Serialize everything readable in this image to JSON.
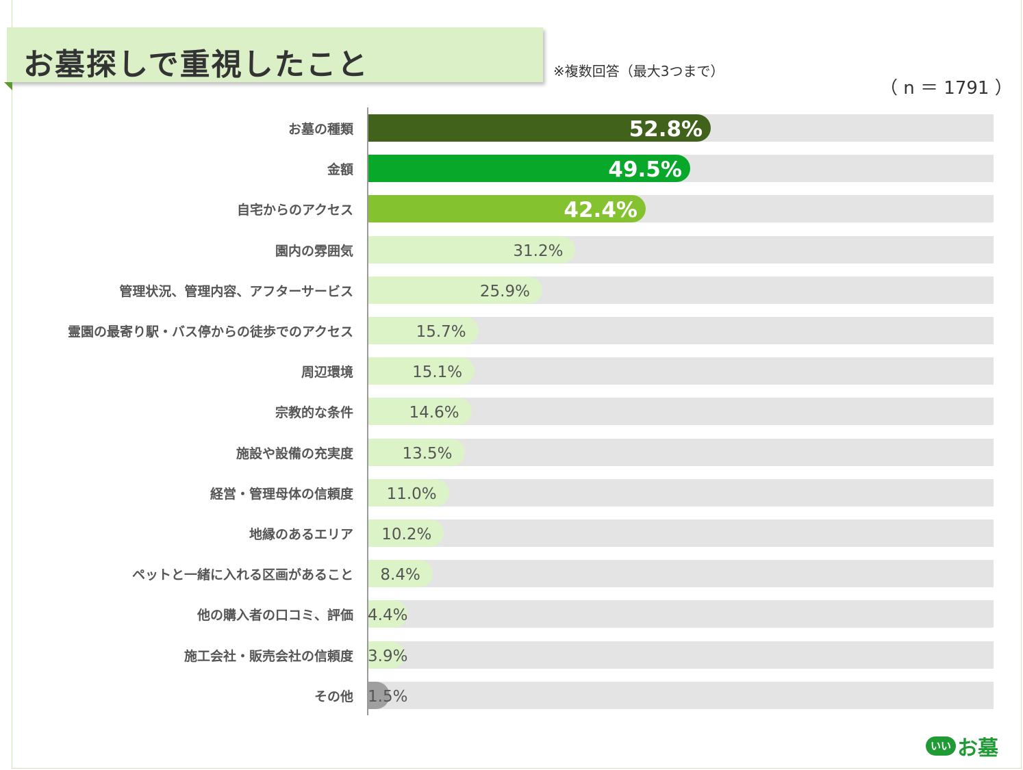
{
  "title": "お墓探しで重視したこと",
  "note": "※複数回答（最大3つまで）",
  "sample_size": "（ n ＝ 1791 ）",
  "logo": {
    "mark": "いい",
    "text": "お墓"
  },
  "colors": {
    "top1": "#41621a",
    "top2": "#08a82b",
    "top3": "#84c22f",
    "rest": "#dcf3c8",
    "other": "#9f9f9f",
    "track": "#e4e4e4"
  },
  "chart_data": {
    "type": "bar",
    "orientation": "horizontal",
    "xlim": [
      0,
      100
    ],
    "categories": [
      "お墓の種類",
      "金額",
      "自宅からのアクセス",
      "園内の雰囲気",
      "管理状況、管理内容、アフターサービス",
      "霊園の最寄り駅・バス停からの徒歩でのアクセス",
      "周辺環境",
      "宗教的な条件",
      "施設や設備の充実度",
      "経営・管理母体の信頼度",
      "地縁のあるエリア",
      "ペットと一緒に入れる区画があること",
      "他の購入者の口コミ、評価",
      "施工会社・販売会社の信頼度",
      "その他"
    ],
    "values": [
      52.8,
      49.5,
      42.4,
      31.2,
      25.9,
      15.7,
      15.1,
      14.6,
      13.5,
      11.0,
      10.2,
      8.4,
      4.4,
      3.9,
      1.5
    ],
    "value_labels": [
      "52.8%",
      "49.5%",
      "42.4%",
      "31.2%",
      "25.9%",
      "15.7%",
      "15.1%",
      "14.6%",
      "13.5%",
      "11.0%",
      "10.2%",
      "8.4%",
      "4.4%",
      "3.9%",
      "1.5%"
    ]
  }
}
